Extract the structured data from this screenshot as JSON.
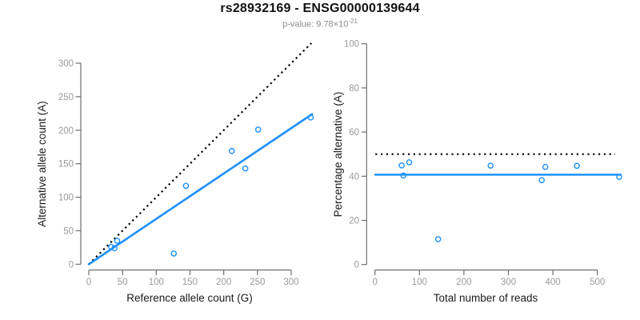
{
  "header": {
    "title": "rs28932169 - ENSG00000139644",
    "subtitle_prefix": "p-value: 9.78×10",
    "subtitle_exponent": "-21"
  },
  "colors": {
    "accent_blue": "#1E90FF",
    "dotted_line": "#000000",
    "axis_line": "#6e6e6e",
    "tick_label": "#999999",
    "axis_title": "#1a1a1a"
  },
  "chart_data": [
    {
      "type": "scatter",
      "panel": "left",
      "xlabel": "Reference allele count (G)",
      "ylabel": "Alternative allele count (A)",
      "xticks": [
        0,
        50,
        100,
        150,
        200,
        250,
        300
      ],
      "yticks": [
        0,
        50,
        100,
        150,
        200,
        250,
        300
      ],
      "xlim": [
        0,
        331
      ],
      "ylim": [
        0,
        333
      ],
      "grid": false,
      "points": [
        [
          33,
          26
        ],
        [
          38,
          24
        ],
        [
          42,
          35
        ],
        [
          126,
          16
        ],
        [
          144,
          117
        ],
        [
          212,
          169
        ],
        [
          232,
          143
        ],
        [
          251,
          201
        ],
        [
          329,
          219
        ]
      ],
      "identity_line": {
        "style": "dotted",
        "from": [
          0,
          0
        ],
        "to": [
          330,
          330
        ]
      },
      "fit_line": {
        "style": "solid",
        "from": [
          0,
          0
        ],
        "to": [
          331,
          224
        ]
      }
    },
    {
      "type": "scatter",
      "panel": "right",
      "xlabel": "Total number of reads",
      "ylabel": "Percentage alternative (A)",
      "xticks": [
        0,
        100,
        200,
        300,
        400,
        500
      ],
      "yticks": [
        0,
        20,
        40,
        60,
        80,
        100
      ],
      "xlim": [
        0,
        553
      ],
      "ylim": [
        0,
        100
      ],
      "grid": false,
      "points": [
        [
          60,
          44.9
        ],
        [
          64,
          40.3
        ],
        [
          77,
          46.3
        ],
        [
          142,
          11.5
        ],
        [
          260,
          44.8
        ],
        [
          375,
          38.2
        ],
        [
          383,
          44.2
        ],
        [
          454,
          44.7
        ],
        [
          549,
          39.7
        ]
      ],
      "dotted_hline": 50,
      "solid_hline": 40.7
    }
  ]
}
